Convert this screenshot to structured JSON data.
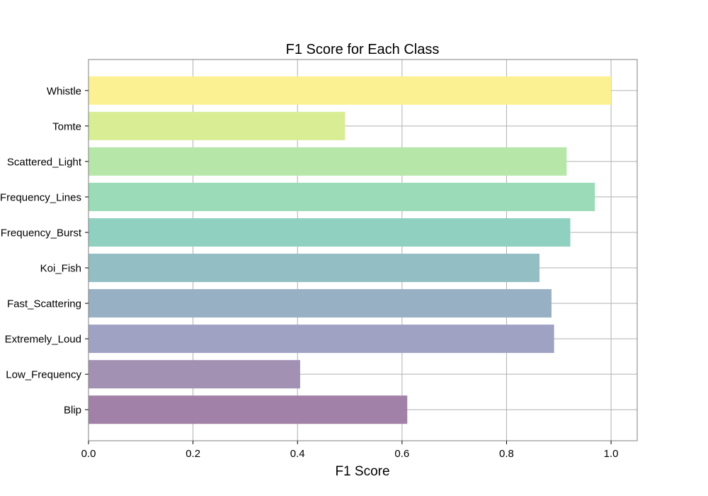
{
  "chart_data": {
    "type": "bar",
    "orientation": "horizontal",
    "title": "F1 Score for Each Class",
    "xlabel": "F1 Score",
    "ylabel": "",
    "xlim": [
      0,
      1.05
    ],
    "grid": true,
    "x_ticks": [
      "0.0",
      "0.2",
      "0.4",
      "0.6",
      "0.8",
      "1.0"
    ],
    "categories": [
      "Blip",
      "Low_Frequency",
      "Extremely_Loud",
      "Fast_Scattering",
      "Koi_Fish",
      "Frequency_Burst",
      "Frequency_Lines",
      "Scattered_Light",
      "Tomte",
      "Whistle"
    ],
    "values": [
      0.61,
      0.405,
      0.891,
      0.886,
      0.863,
      0.922,
      0.969,
      0.915,
      0.491,
      1.0
    ],
    "colors": [
      "#a281a8",
      "#a391b4",
      "#a0a2c4",
      "#97b0c4",
      "#92bec4",
      "#8fd0c1",
      "#9bdbb7",
      "#b6e7a9",
      "#d9ed95",
      "#fcf192"
    ]
  }
}
